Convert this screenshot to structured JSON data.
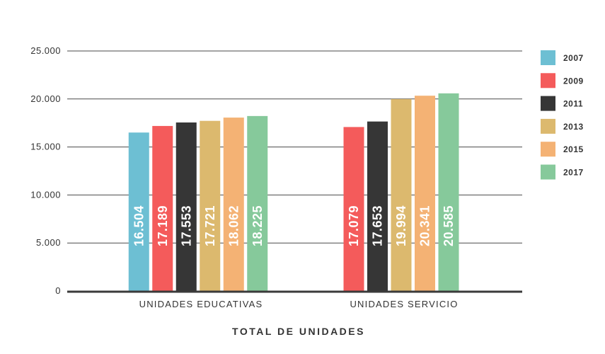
{
  "chart_data": {
    "type": "bar",
    "xlabel": "TOTAL DE UNIDADES",
    "ylabel": "",
    "ylim": [
      0,
      25000
    ],
    "yticks": [
      0,
      5000,
      10000,
      15000,
      20000,
      25000
    ],
    "ytick_labels": [
      "0",
      "5.000",
      "10.000",
      "15.000",
      "20.000",
      "25.000"
    ],
    "grid": true,
    "legend_position": "right",
    "categories": [
      "UNIDADES EDUCATIVAS",
      "UNIDADES SERVICIO"
    ],
    "series": [
      {
        "name": "2007",
        "color": "#6dbfd3",
        "values": [
          16504,
          null
        ],
        "labels": [
          "16.504",
          ""
        ]
      },
      {
        "name": "2009",
        "color": "#f45b5b",
        "values": [
          17189,
          17079
        ],
        "labels": [
          "17.189",
          "17.079"
        ]
      },
      {
        "name": "2011",
        "color": "#363636",
        "values": [
          17553,
          17653
        ],
        "labels": [
          "17.553",
          "17.653"
        ]
      },
      {
        "name": "2013",
        "color": "#dcb96e",
        "values": [
          17721,
          19994
        ],
        "labels": [
          "17.721",
          "19.994"
        ]
      },
      {
        "name": "2015",
        "color": "#f4b274",
        "values": [
          18062,
          20341
        ],
        "labels": [
          "18.062",
          "20.341"
        ]
      },
      {
        "name": "2017",
        "color": "#86c99b",
        "values": [
          18225,
          20585
        ],
        "labels": [
          "18.225",
          "20.585"
        ]
      }
    ]
  }
}
